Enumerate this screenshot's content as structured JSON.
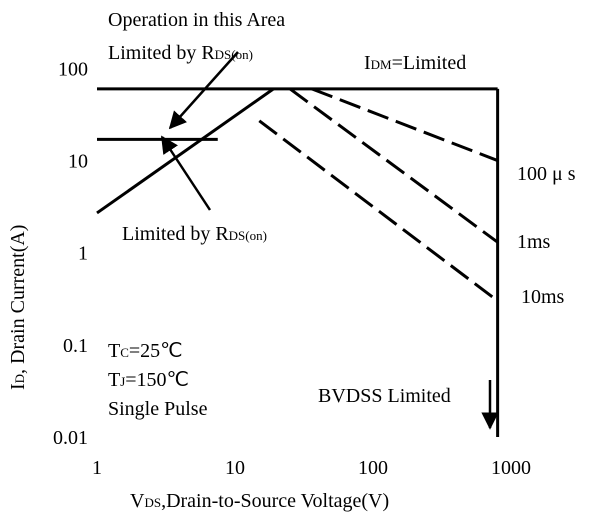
{
  "chart_data": {
    "type": "line",
    "xlabel": {
      "text": "V",
      "sub": "DS",
      "rest": ",Drain-to-Source Voltage(V)"
    },
    "ylabel": {
      "text": "I",
      "sub": "D",
      "rest": ", Drain Current(A)"
    },
    "log_x": true,
    "log_y": true,
    "grid": true,
    "xlim": [
      1,
      1000
    ],
    "xticks": [
      1,
      10,
      100,
      1000
    ],
    "ylim": [
      0.01,
      500
    ],
    "yticks": [
      0.01,
      0.1,
      1,
      10,
      100
    ],
    "series": [
      {
        "color": "#000000",
        "style": "solid",
        "x": [
          1,
          19
        ],
        "values": [
          2.7,
          60
        ]
      },
      {
        "color": "#000000",
        "style": "solid",
        "x": [
          1,
          800
        ],
        "values": [
          60,
          60
        ]
      },
      {
        "color": "#000000",
        "style": "solid",
        "x": [
          800,
          800
        ],
        "values": [
          60,
          0.01
        ]
      },
      {
        "color": "#000000",
        "style": "solid",
        "x": [
          1,
          7.5
        ],
        "values": [
          17,
          17
        ]
      },
      {
        "color": "#000000",
        "style": "dashed",
        "x": [
          36,
          800
        ],
        "values": [
          60,
          10
        ]
      },
      {
        "color": "#000000",
        "style": "dashed",
        "x": [
          25,
          800
        ],
        "values": [
          60,
          1.3
        ]
      },
      {
        "color": "#000000",
        "style": "dashed",
        "x": [
          15,
          800
        ],
        "values": [
          27,
          0.3
        ]
      }
    ],
    "annotations": [
      {
        "text": "Operation in this Area",
        "sub": "",
        "rest": ""
      },
      {
        "text": "Limited by R",
        "sub": "DS(on)",
        "rest": ""
      },
      {
        "text": "I",
        "sub": "DM",
        "rest": "=Limited"
      },
      {
        "text": "100 μ s",
        "sub": "",
        "rest": ""
      },
      {
        "text": "1ms",
        "sub": "",
        "rest": ""
      },
      {
        "text": "10ms",
        "sub": "",
        "rest": ""
      },
      {
        "text": "Limited by R",
        "sub": "DS(on)",
        "rest": ""
      },
      {
        "text": "T",
        "sub": "C",
        "rest": "=25℃"
      },
      {
        "text": "T",
        "sub": "J",
        "rest": "=150℃"
      },
      {
        "text": "Single Pulse",
        "sub": "",
        "rest": ""
      },
      {
        "text": "BVDSS Limited",
        "sub": "",
        "rest": ""
      }
    ]
  }
}
